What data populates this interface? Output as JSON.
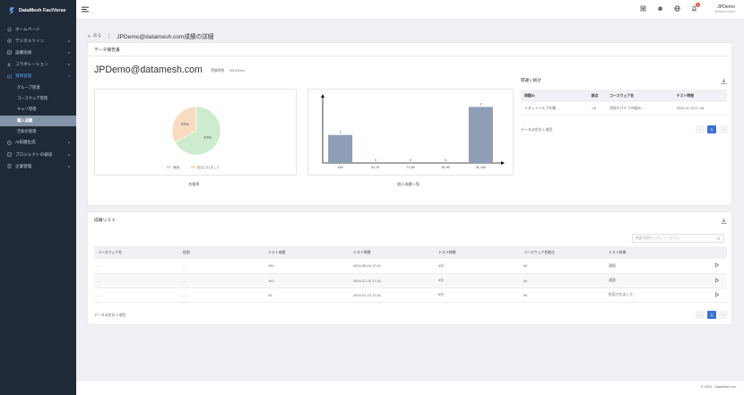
{
  "app": {
    "brand": "DataMesh FactVerse"
  },
  "sidebar": {
    "items": [
      {
        "label": "ホームページ",
        "icon": "home-icon",
        "has_chevron": false
      },
      {
        "label": "デジタルツイン",
        "icon": "cube-icon",
        "has_chevron": true
      },
      {
        "label": "設備巡検",
        "icon": "clipboard-icon",
        "has_chevron": true
      },
      {
        "label": "コラボレーション",
        "icon": "users-icon",
        "has_chevron": true
      },
      {
        "label": "資格管理",
        "icon": "certificate-icon",
        "has_chevron": true,
        "active": true
      }
    ],
    "sub_items": [
      {
        "label": "グループ管理"
      },
      {
        "label": "コースウェア管理"
      },
      {
        "label": "キャリ管理"
      },
      {
        "label": "購入成績",
        "active": true
      },
      {
        "label": "告知の管理"
      }
    ],
    "more_items": [
      {
        "label": "AI知識生成",
        "icon": "ai-icon",
        "has_chevron": true
      },
      {
        "label": "プロジェクトの検収",
        "icon": "project-icon",
        "has_chevron": true
      },
      {
        "label": "企業管理",
        "icon": "building-icon",
        "has_chevron": true
      }
    ]
  },
  "topbar": {
    "notification_count": "6",
    "user_name": "JPDemo",
    "user_role": "Business Admin"
  },
  "breadcrumb": {
    "back_label": "戻る",
    "title": "JPDemo@datamesh.com成績の詳細"
  },
  "report": {
    "section_title": "データ報告書",
    "email": "JPDemo@datamesh.com",
    "exam_time_label": "受験時間",
    "exam_time_value": "00h33min",
    "pie_caption": "合格率",
    "bar_caption": "個人成績一覧",
    "pie_legend": [
      "通過",
      "拒否されました"
    ],
    "stats_title": "間違い統計",
    "stats_headers": [
      "問題ID",
      "誤点",
      "コースウェア名",
      "テスト時間"
    ],
    "stats_rows": [
      [
        "リネットバルブを開…",
        "-10",
        "伐採ホパイプの組み…",
        "2024-07-23 17:16"
      ]
    ],
    "stats_total": "データは合計 1 項目",
    "page_current": "1",
    "page_prev": "‹",
    "page_next": "›"
  },
  "grades": {
    "section_title": "成績リスト",
    "search_placeholder": "検索内容を入力してください",
    "headers": [
      "コースウェア名",
      "従前",
      "テスト成績",
      "テスト時間",
      "テスト時間",
      "コースウェア合格点",
      "テスト結果"
    ],
    "rows": [
      [
        "--",
        "--",
        "100",
        "2024-08-16 17:42",
        "4分",
        "60",
        "通過"
      ],
      [
        "--",
        "--",
        "100",
        "2024-07-23 17:18",
        "8分",
        "60",
        "通過"
      ],
      [
        "--",
        "--",
        "40",
        "2024-07-23 17:16",
        "8分",
        "60",
        "拒否されました"
      ]
    ],
    "total": "データは合計 3 項目",
    "page_current": "1",
    "page_prev": "‹",
    "page_next": "›"
  },
  "footer": {
    "copyright": "© 2024 - DataMesh Inc."
  },
  "colors": {
    "sidebar_bg": "#1f2937",
    "accent": "#3b73d6",
    "pie_pass": "#cdeccd",
    "pie_fail": "#f8dcc2",
    "bar": "#8f9db6"
  },
  "chart_data": [
    {
      "type": "pie",
      "labels": [
        "通過",
        "拒否されました"
      ],
      "values": [
        67,
        33
      ],
      "slice_labels": [
        "67%",
        "33%"
      ],
      "colors": [
        "#cdeccd",
        "#f8dcc2"
      ]
    },
    {
      "type": "bar",
      "categories": [
        "≤50",
        "51-70",
        "71-80",
        "81-90",
        "91-100"
      ],
      "values": [
        1,
        0,
        0,
        0,
        2
      ],
      "ylim": [
        0,
        2.3
      ]
    }
  ]
}
